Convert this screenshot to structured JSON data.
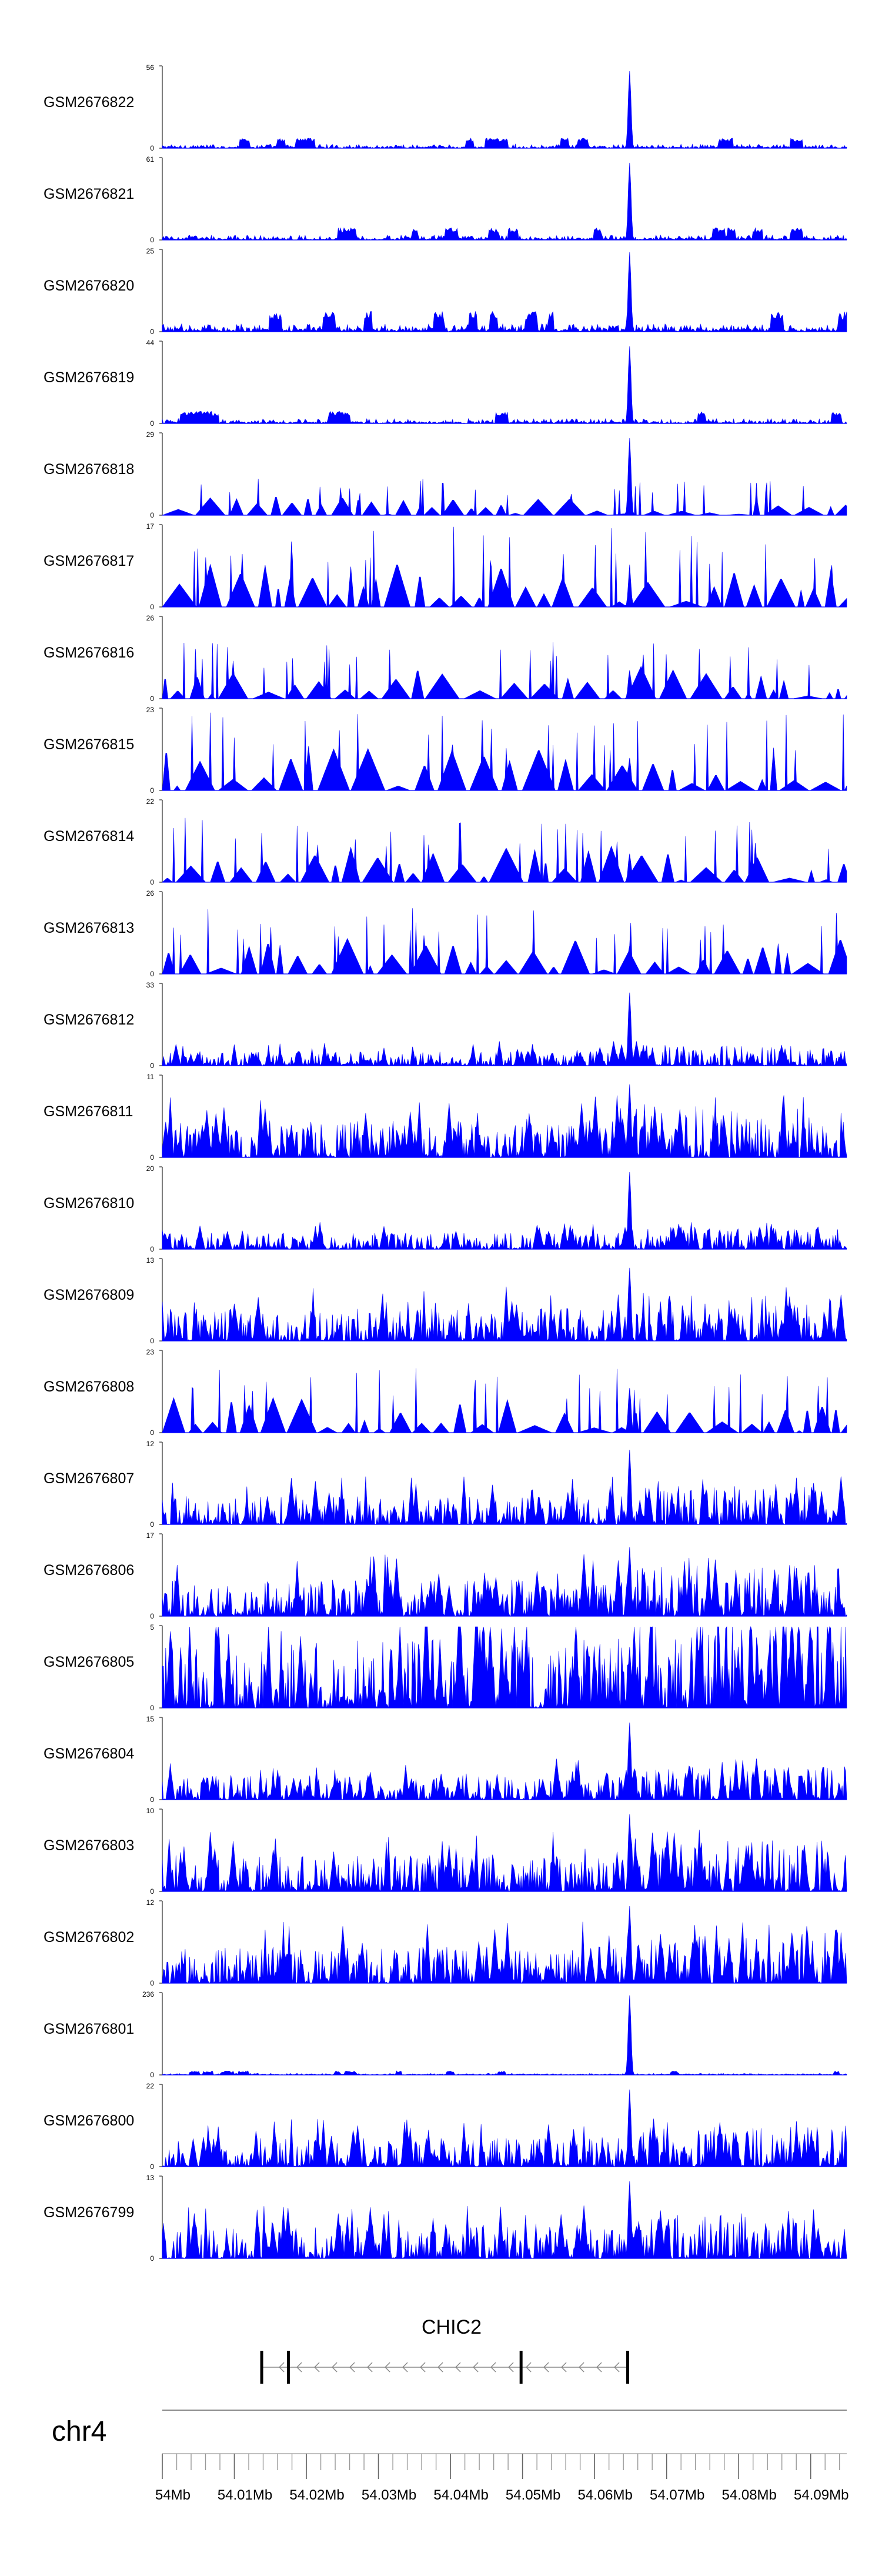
{
  "chart_data": {
    "type": "area",
    "title": "",
    "chromosome": "chr4",
    "x_range": [
      54.0,
      54.095
    ],
    "x_unit": "Mb",
    "x_ticks": [
      "54Mb",
      "54.01Mb",
      "54.02Mb",
      "54.03Mb",
      "54.04Mb",
      "54.05Mb",
      "54.06Mb",
      "54.07Mb",
      "54.08Mb",
      "54.09Mb"
    ],
    "x_tick_values": [
      54.0,
      54.01,
      54.02,
      54.03,
      54.04,
      54.05,
      54.06,
      54.07,
      54.08,
      54.09
    ],
    "series_color": "#0000ff",
    "peak_position": 54.0648,
    "series": [
      {
        "name": "GSM2676822",
        "ymax": 56,
        "peak_frac": 0.95,
        "noise": 0.05,
        "style": "sparse"
      },
      {
        "name": "GSM2676821",
        "ymax": 61,
        "peak_frac": 0.95,
        "noise": 0.06,
        "style": "sparse"
      },
      {
        "name": "GSM2676820",
        "ymax": 25,
        "peak_frac": 0.98,
        "noise": 0.1,
        "style": "sparse"
      },
      {
        "name": "GSM2676819",
        "ymax": 44,
        "peak_frac": 0.95,
        "noise": 0.06,
        "style": "sparse"
      },
      {
        "name": "GSM2676818",
        "ymax": 29,
        "peak_frac": 0.95,
        "noise": 0.25,
        "style": "triangles"
      },
      {
        "name": "GSM2676817",
        "ymax": 17,
        "peak_frac": 0.45,
        "noise": 0.55,
        "style": "triangles"
      },
      {
        "name": "GSM2676816",
        "ymax": 26,
        "peak_frac": 0.35,
        "noise": 0.4,
        "style": "triangles"
      },
      {
        "name": "GSM2676815",
        "ymax": 23,
        "peak_frac": 0.4,
        "noise": 0.55,
        "style": "triangles"
      },
      {
        "name": "GSM2676814",
        "ymax": 22,
        "peak_frac": 0.35,
        "noise": 0.45,
        "style": "triangles"
      },
      {
        "name": "GSM2676813",
        "ymax": 26,
        "peak_frac": 0.35,
        "noise": 0.45,
        "style": "triangles"
      },
      {
        "name": "GSM2676812",
        "ymax": 33,
        "peak_frac": 0.9,
        "noise": 0.18,
        "style": "dense"
      },
      {
        "name": "GSM2676811",
        "ymax": 11,
        "peak_frac": 0.9,
        "noise": 0.45,
        "style": "dense"
      },
      {
        "name": "GSM2676810",
        "ymax": 20,
        "peak_frac": 0.95,
        "noise": 0.2,
        "style": "dense"
      },
      {
        "name": "GSM2676809",
        "ymax": 13,
        "peak_frac": 0.9,
        "noise": 0.4,
        "style": "dense"
      },
      {
        "name": "GSM2676808",
        "ymax": 23,
        "peak_frac": 0.55,
        "noise": 0.45,
        "style": "triangles"
      },
      {
        "name": "GSM2676807",
        "ymax": 12,
        "peak_frac": 0.92,
        "noise": 0.35,
        "style": "dense"
      },
      {
        "name": "GSM2676806",
        "ymax": 17,
        "peak_frac": 0.85,
        "noise": 0.45,
        "style": "dense"
      },
      {
        "name": "GSM2676805",
        "ymax": 5,
        "peak_frac": 0.75,
        "noise": 0.85,
        "style": "dense"
      },
      {
        "name": "GSM2676804",
        "ymax": 15,
        "peak_frac": 0.95,
        "noise": 0.3,
        "style": "dense"
      },
      {
        "name": "GSM2676803",
        "ymax": 10,
        "peak_frac": 0.95,
        "noise": 0.45,
        "style": "dense"
      },
      {
        "name": "GSM2676802",
        "ymax": 12,
        "peak_frac": 0.95,
        "noise": 0.45,
        "style": "dense"
      },
      {
        "name": "GSM2676801",
        "ymax": 236,
        "peak_frac": 0.98,
        "noise": 0.02,
        "style": "sparse"
      },
      {
        "name": "GSM2676800",
        "ymax": 22,
        "peak_frac": 0.95,
        "noise": 0.35,
        "style": "dense"
      },
      {
        "name": "GSM2676799",
        "ymax": 13,
        "peak_frac": 0.95,
        "noise": 0.4,
        "style": "dense"
      }
    ],
    "gene": {
      "name": "CHIC2",
      "start": 54.0138,
      "end": 54.0648,
      "strand": "-",
      "exons": [
        54.0138,
        54.0175,
        54.0498,
        54.0646
      ]
    }
  }
}
